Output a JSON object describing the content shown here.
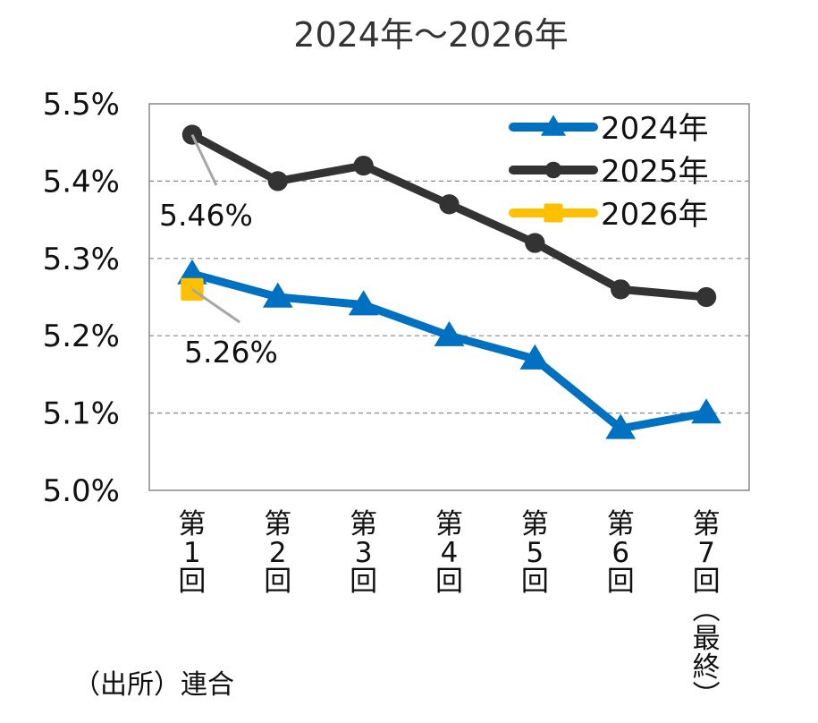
{
  "chart_data": {
    "type": "line",
    "title": "2024年～2026年",
    "xlabel": "",
    "ylabel": "",
    "categories": [
      "第1回",
      "第2回",
      "第3回",
      "第4回",
      "第5回",
      "第6回",
      "第7回（最終）"
    ],
    "category_labels": [
      [
        "第",
        "1",
        "回"
      ],
      [
        "第",
        "2",
        "回"
      ],
      [
        "第",
        "3",
        "回"
      ],
      [
        "第",
        "4",
        "回"
      ],
      [
        "第",
        "5",
        "回"
      ],
      [
        "第",
        "6",
        "回"
      ],
      [
        "第",
        "7",
        "回",
        "︵",
        "最",
        "終",
        "︶"
      ]
    ],
    "ylim": [
      5.0,
      5.5
    ],
    "yticks": [
      5.0,
      5.1,
      5.2,
      5.3,
      5.4,
      5.5
    ],
    "ytick_labels": [
      "5.0%",
      "5.1%",
      "5.2%",
      "5.3%",
      "5.4%",
      "5.5%"
    ],
    "grid": true,
    "legend_position": "top-right",
    "series": [
      {
        "name": "2024年",
        "color": "#0070C0",
        "marker": "triangle",
        "values": [
          5.28,
          5.25,
          5.24,
          5.2,
          5.17,
          5.08,
          5.1
        ]
      },
      {
        "name": "2025年",
        "color": "#333333",
        "marker": "circle",
        "values": [
          5.46,
          5.4,
          5.42,
          5.37,
          5.32,
          5.26,
          5.25
        ]
      },
      {
        "name": "2026年",
        "color": "#FFC000",
        "marker": "square",
        "values": [
          5.26,
          null,
          null,
          null,
          null,
          null,
          null
        ]
      }
    ],
    "annotations": [
      {
        "text": "5.46%",
        "series": "2025年",
        "category": "第1回"
      },
      {
        "text": "5.26%",
        "series": "2026年",
        "category": "第1回"
      }
    ],
    "source": "（出所）連合"
  }
}
